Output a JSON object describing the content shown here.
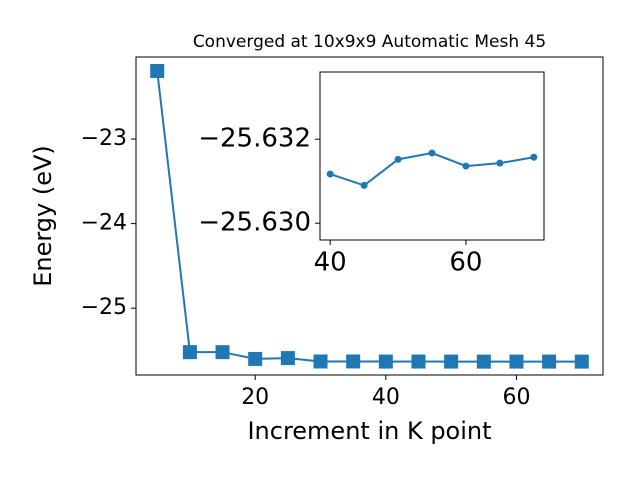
{
  "chart_data": [
    {
      "type": "line",
      "title": "Converged at 10x9x9 Automatic Mesh 45",
      "x_label": "Increment in K point",
      "y_label": "Energy (eV)",
      "x": [
        5,
        10,
        15,
        20,
        25,
        30,
        35,
        40,
        45,
        50,
        55,
        60,
        65,
        70
      ],
      "series": [
        {
          "color": "#1f77b4",
          "marker": "square",
          "values": [
            -22.195,
            -25.52,
            -25.52,
            -25.6,
            -25.59,
            -25.63,
            -25.63,
            -25.6312,
            -25.6309,
            -25.6315,
            -25.6317,
            -25.6314,
            -25.6314,
            -25.6316
          ]
        }
      ],
      "xlim": [
        1.75,
        73.25
      ],
      "ylim": [
        -25.79,
        -22.03
      ],
      "xticks": [
        20,
        40,
        60
      ],
      "yticks": [
        {
          "value": -23,
          "label": "−23"
        },
        {
          "value": -24,
          "label": "−24"
        },
        {
          "value": -25,
          "label": "−25"
        }
      ]
    },
    {
      "type": "line",
      "x": [
        40,
        45,
        50,
        55,
        60,
        65,
        70
      ],
      "series": [
        {
          "color": "#1f77b4",
          "marker": "circle",
          "values": [
            -25.63117,
            -25.6309,
            -25.63152,
            -25.63167,
            -25.63136,
            -25.63143,
            -25.63157
          ]
        }
      ],
      "xlim": [
        38.5,
        71.5
      ],
      "ylim": [
        -25.6296,
        -25.6336
      ],
      "xticks": [
        40,
        60
      ],
      "yticks": [
        {
          "value": -25.632,
          "label": "−25.632"
        },
        {
          "value": -25.63,
          "label": "−25.630"
        }
      ]
    }
  ]
}
